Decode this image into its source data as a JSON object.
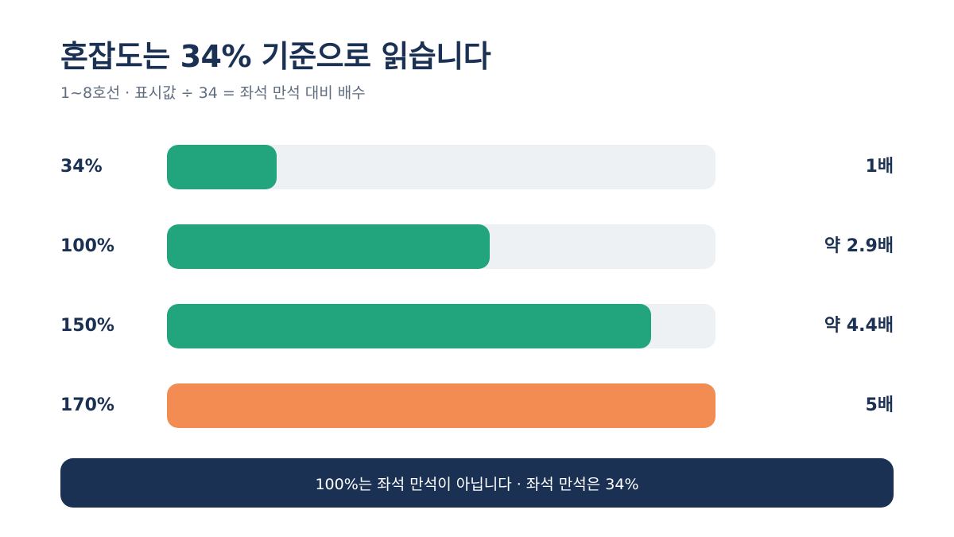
{
  "title": "혼잡도는 34% 기준으로 읽습니다",
  "subtitle": "1~8호선 · 표시값 ÷ 34 = 좌석 만석 대비 배수",
  "banner": "100%는 좌석 만석이 아닙니다 · 좌석 만석은 34%",
  "colors": {
    "normal": "#22a57c",
    "highlight": "#f28c52",
    "track": "#eef1f4",
    "navy": "#1b3153"
  },
  "chart_data": {
    "type": "bar",
    "orientation": "horizontal",
    "title": "혼잡도는 34% 기준으로 읽습니다",
    "subtitle": "1~8호선 · 표시값 ÷ 34 = 좌석 만석 대비 배수",
    "xlim": [
      0,
      170
    ],
    "categories": [
      "34%",
      "100%",
      "150%",
      "170%"
    ],
    "values": [
      34,
      100,
      150,
      170
    ],
    "multipliers": [
      "1배",
      "약 2.9배",
      "약 4.4배",
      "5배"
    ],
    "highlight_index": 3
  }
}
